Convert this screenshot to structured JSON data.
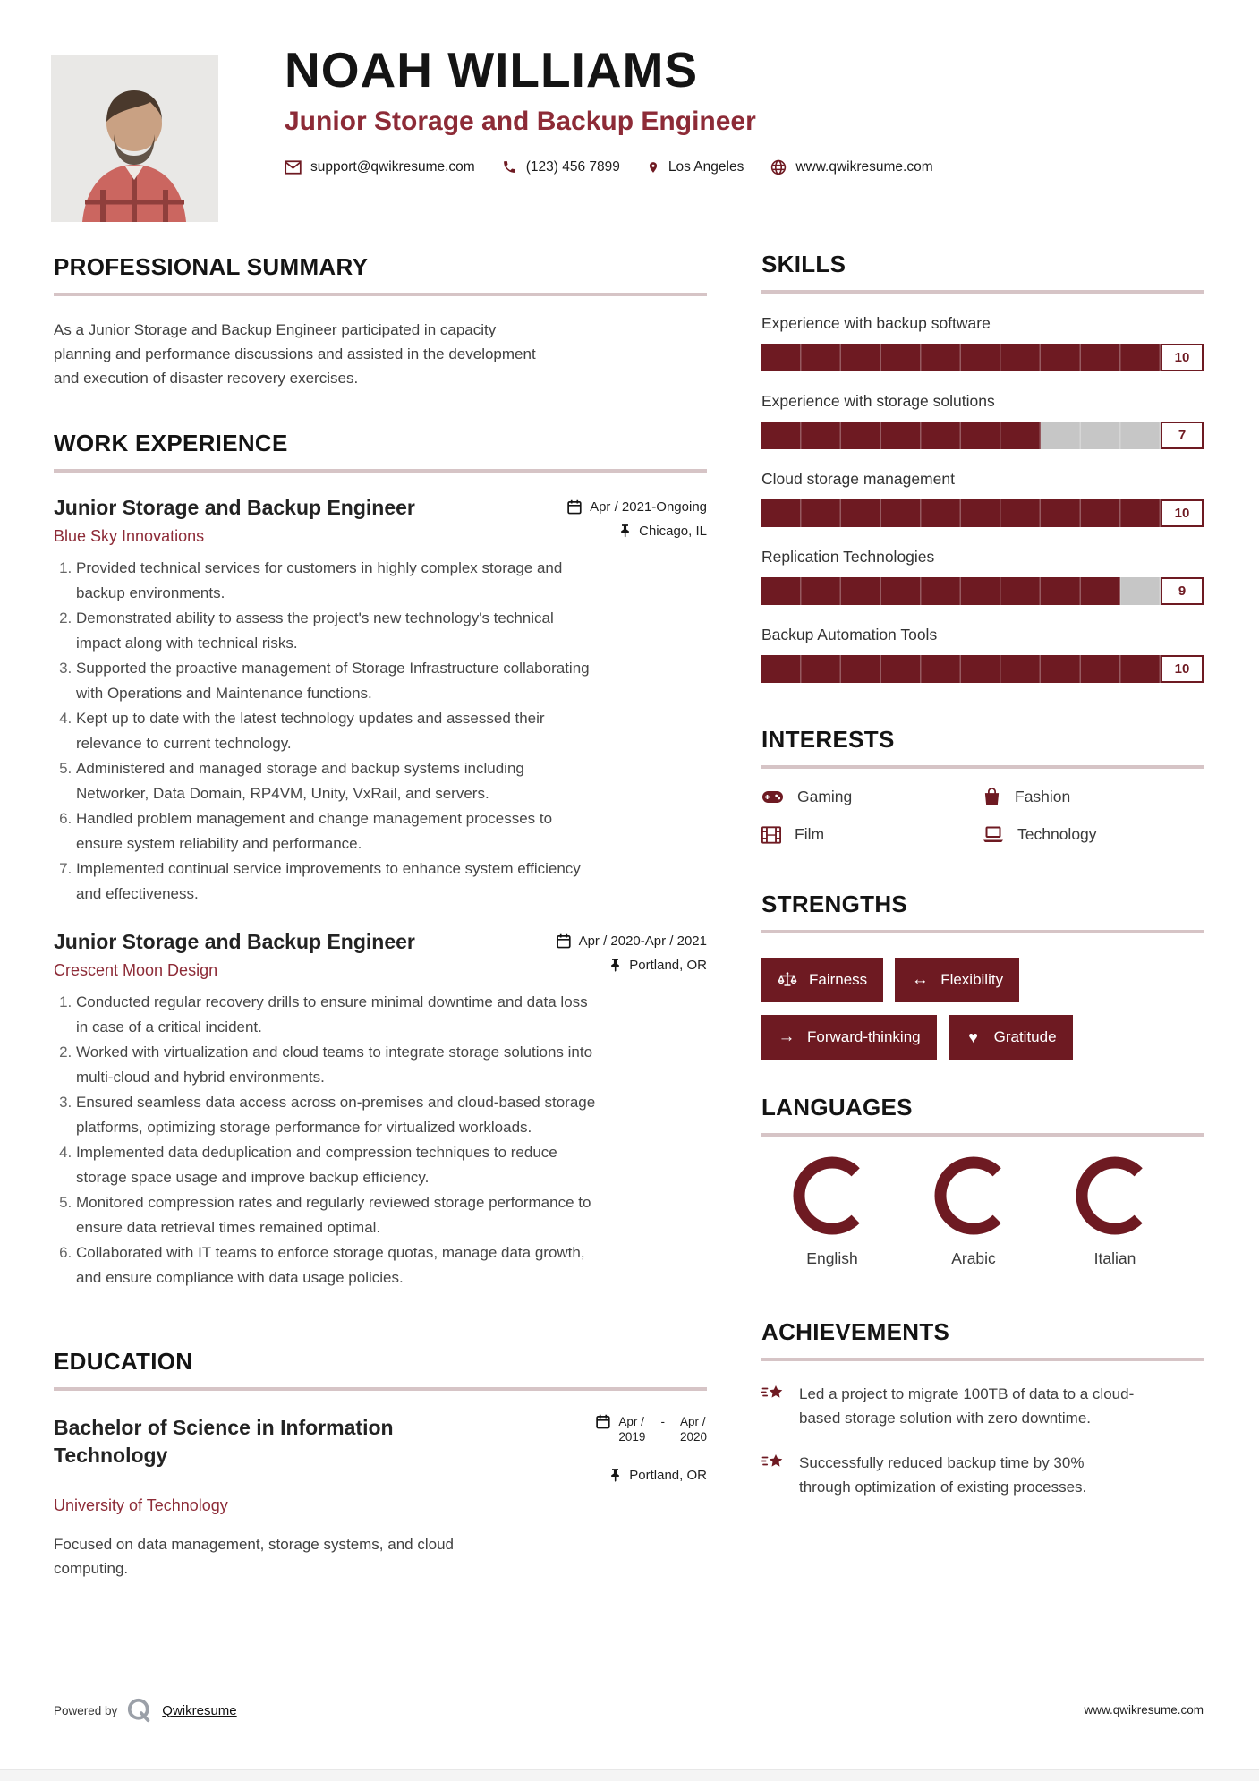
{
  "colors": {
    "accent_dark": "#6E1A22",
    "accent_mid": "#8D2B37",
    "bar_track": "#c6c6c6",
    "rule": "#d6c4c6"
  },
  "icons": {
    "email-icon": "envelope outline",
    "phone-icon": "solid handset",
    "location-pin-icon": "map pin",
    "globe-icon": "globe",
    "calendar-icon": "calendar",
    "pushpin-icon": "push pin",
    "gamepad-icon": "game controller",
    "shopping-bag-icon": "shopping bag",
    "film-icon": "film strip",
    "laptop-icon": "laptop",
    "scales-icon": "balance scales",
    "left-right-arrow-icon": "↔",
    "right-arrow-icon": "→",
    "heart-icon": "♥",
    "shooting-star-icon": "star with speed lines",
    "qwikresume-logo": "Q mark"
  },
  "header": {
    "name": "NOAH WILLIAMS",
    "title": "Junior Storage and Backup Engineer",
    "contacts": {
      "email": "support@qwikresume.com",
      "phone": "(123) 456 7899",
      "location": "Los Angeles",
      "website": "www.qwikresume.com"
    }
  },
  "summary": {
    "heading": "PROFESSIONAL SUMMARY",
    "text": "As a Junior Storage and Backup Engineer participated in capacity planning and performance discussions and assisted in the development and execution of disaster recovery exercises."
  },
  "experience": {
    "heading": "WORK EXPERIENCE",
    "jobs": [
      {
        "title": "Junior Storage and Backup Engineer",
        "company": "Blue Sky Innovations",
        "dates": "Apr / 2021-Ongoing",
        "location": "Chicago, IL",
        "bullets": [
          "Provided technical services for customers in highly complex storage and backup environments.",
          "Demonstrated ability to assess the project's new technology's technical impact along with technical risks.",
          "Supported the proactive management of Storage Infrastructure collaborating with Operations and Maintenance functions.",
          "Kept up to date with the latest technology updates and assessed their relevance to current technology.",
          "Administered and managed storage and backup systems including Networker, Data Domain, RP4VM, Unity, VxRail, and servers.",
          "Handled problem management and change management processes to ensure system reliability and performance.",
          "Implemented continual service improvements to enhance system efficiency and effectiveness."
        ]
      },
      {
        "title": "Junior Storage and Backup Engineer",
        "company": "Crescent Moon Design",
        "dates": "Apr / 2020-Apr / 2021",
        "location": "Portland, OR",
        "bullets": [
          "Conducted regular recovery drills to ensure minimal downtime and data loss in case of a critical incident.",
          "Worked with virtualization and cloud teams to integrate storage solutions into multi-cloud and hybrid environments.",
          "Ensured seamless data access across on-premises and cloud-based storage platforms, optimizing storage performance for virtualized workloads.",
          "Implemented data deduplication and compression techniques to reduce storage space usage and improve backup efficiency.",
          "Monitored compression rates and regularly reviewed storage performance to ensure data retrieval times remained optimal.",
          "Collaborated with IT teams to enforce storage quotas, manage data growth, and ensure compliance with data usage policies."
        ]
      }
    ]
  },
  "education": {
    "heading": "EDUCATION",
    "degree": "Bachelor of Science in Information Technology",
    "school": "University of Technology",
    "date": {
      "from_month": "Apr /",
      "from_year": "2019",
      "sep": "-",
      "to_month": "Apr /",
      "to_year": "2020"
    },
    "location": "Portland, OR",
    "description": "Focused on data management, storage systems, and cloud computing."
  },
  "skills": {
    "heading": "SKILLS",
    "max": 10,
    "items": [
      {
        "label": "Experience with backup software",
        "value": 10
      },
      {
        "label": "Experience with storage solutions",
        "value": 7
      },
      {
        "label": "Cloud storage management",
        "value": 10
      },
      {
        "label": "Replication Technologies",
        "value": 9
      },
      {
        "label": "Backup Automation Tools",
        "value": 10
      }
    ]
  },
  "interests": {
    "heading": "INTERESTS",
    "items": [
      {
        "label": "Gaming",
        "icon": "gamepad-icon"
      },
      {
        "label": "Fashion",
        "icon": "shopping-bag-icon"
      },
      {
        "label": "Film",
        "icon": "film-icon"
      },
      {
        "label": "Technology",
        "icon": "laptop-icon"
      }
    ]
  },
  "strengths": {
    "heading": "STRENGTHS",
    "items": [
      {
        "label": "Fairness",
        "icon": "scales-icon"
      },
      {
        "label": "Flexibility",
        "icon": "left-right-arrow-icon"
      },
      {
        "label": "Forward-thinking",
        "icon": "right-arrow-icon"
      },
      {
        "label": "Gratitude",
        "icon": "heart-icon"
      }
    ]
  },
  "languages": {
    "heading": "LANGUAGES",
    "items": [
      {
        "label": "English",
        "level": 75
      },
      {
        "label": "Arabic",
        "level": 75
      },
      {
        "label": "Italian",
        "level": 75
      }
    ]
  },
  "achievements": {
    "heading": "ACHIEVEMENTS",
    "items": [
      "Led a project to migrate 100TB of data to a cloud-based storage solution with zero downtime.",
      "Successfully reduced backup time by 30% through optimization of existing processes."
    ]
  },
  "footer": {
    "powered_by": "Powered by",
    "brand": "Qwikresume",
    "website": "www.qwikresume.com"
  }
}
